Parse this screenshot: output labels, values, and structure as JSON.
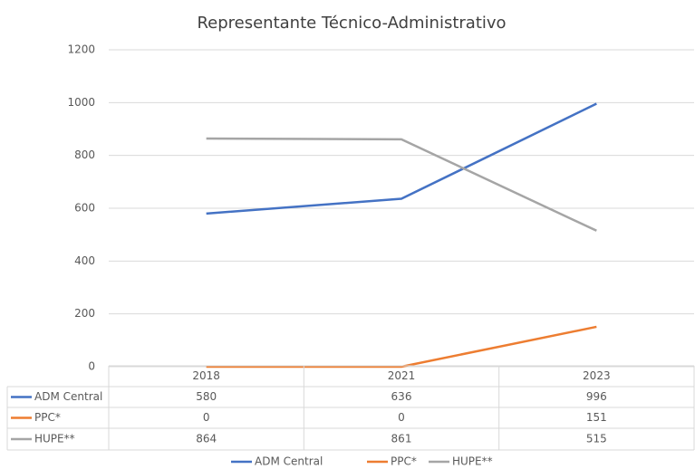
{
  "chart_data": {
    "type": "line",
    "title": "Representante Técnico-Administrativo",
    "categories": [
      "2018",
      "2021",
      "2023"
    ],
    "series": [
      {
        "name": "ADM Central",
        "color": "#4472c4",
        "values": [
          580,
          636,
          996
        ]
      },
      {
        "name": "PPC*",
        "color": "#ed7d31",
        "values": [
          0,
          0,
          151
        ]
      },
      {
        "name": "HUPE**",
        "color": "#a5a5a5",
        "values": [
          864,
          861,
          515
        ]
      }
    ],
    "ylim": [
      0,
      1200
    ],
    "yticks": [
      0,
      200,
      400,
      600,
      800,
      1000,
      1200
    ],
    "grid": true,
    "data_table": true,
    "legend": "bottom"
  }
}
